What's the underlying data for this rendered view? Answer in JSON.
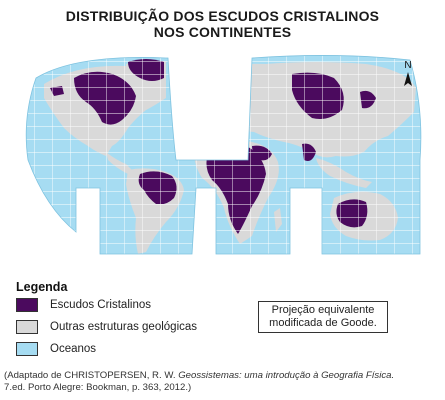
{
  "title": {
    "line1": "DISTRIBUIÇÃO DOS ESCUDOS CRISTALINOS",
    "line2": "NOS CONTINENTES"
  },
  "map": {
    "north_arrow_label": "N",
    "colors": {
      "crystalline_shields": "#4b0a5e",
      "other_structures": "#d9d9d9",
      "oceans": "#a6dcf2",
      "graticule": "#ffffff"
    }
  },
  "legend": {
    "title": "Legenda",
    "items": [
      {
        "label": "Escudos Cristalinos",
        "color": "#4b0a5e"
      },
      {
        "label": "Outras estruturas geológicas",
        "color": "#d9d9d9"
      },
      {
        "label": "Oceanos",
        "color": "#a6dcf2"
      }
    ]
  },
  "projection_note": {
    "line1": "Projeção equivalente",
    "line2": "modificada de Goode."
  },
  "source": {
    "prefix": "(Adaptado de CHRISTOPERSEN, R. W.",
    "italic": "Geossistemas: uma introdução à Geografia Física.",
    "suffix": "7.ed. Porto Alegre: Bookman, p. 363, 2012.)"
  }
}
